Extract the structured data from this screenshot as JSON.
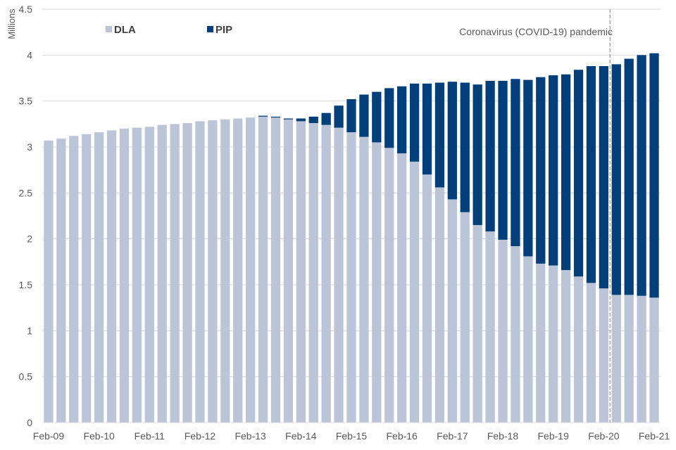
{
  "chart_data": {
    "type": "bar",
    "stacked": true,
    "title": "",
    "xlabel": "",
    "ylabel": "Millions",
    "ylim": [
      0,
      4.5
    ],
    "yticks": [
      0,
      0.5,
      1,
      1.5,
      2,
      2.5,
      3,
      3.5,
      4,
      4.5
    ],
    "ytick_labels": [
      "0",
      "0.5",
      "1",
      "1.5",
      "2",
      "2.5",
      "3",
      "3.5",
      "4",
      "4.5"
    ],
    "grid": true,
    "legend_position": "top-left",
    "x_tick_labels": [
      "Feb-09",
      "Feb-10",
      "Feb-11",
      "Feb-12",
      "Feb-13",
      "Feb-14",
      "Feb-15",
      "Feb-16",
      "Feb-17",
      "Feb-18",
      "Feb-19",
      "Feb-20",
      "Feb-21"
    ],
    "x_tick_every": 4,
    "categories": [
      "Feb-09",
      "May-09",
      "Aug-09",
      "Nov-09",
      "Feb-10",
      "May-10",
      "Aug-10",
      "Nov-10",
      "Feb-11",
      "May-11",
      "Aug-11",
      "Nov-11",
      "Feb-12",
      "May-12",
      "Aug-12",
      "Nov-12",
      "Feb-13",
      "May-13",
      "Aug-13",
      "Nov-13",
      "Feb-14",
      "May-14",
      "Aug-14",
      "Nov-14",
      "Feb-15",
      "May-15",
      "Aug-15",
      "Nov-15",
      "Feb-16",
      "May-16",
      "Aug-16",
      "Nov-16",
      "Feb-17",
      "May-17",
      "Aug-17",
      "Nov-17",
      "Feb-18",
      "May-18",
      "Aug-18",
      "Nov-18",
      "Feb-19",
      "May-19",
      "Aug-19",
      "Nov-19",
      "Feb-20",
      "May-20",
      "Aug-20",
      "Nov-20",
      "Feb-21"
    ],
    "series": [
      {
        "name": "DLA",
        "color": "#bcc5d7",
        "values": [
          3.07,
          3.09,
          3.12,
          3.14,
          3.16,
          3.18,
          3.2,
          3.21,
          3.22,
          3.24,
          3.25,
          3.26,
          3.28,
          3.29,
          3.3,
          3.31,
          3.32,
          3.33,
          3.32,
          3.3,
          3.28,
          3.26,
          3.24,
          3.21,
          3.16,
          3.11,
          3.05,
          2.99,
          2.93,
          2.84,
          2.7,
          2.56,
          2.43,
          2.29,
          2.15,
          2.08,
          1.99,
          1.92,
          1.81,
          1.73,
          1.71,
          1.66,
          1.59,
          1.52,
          1.46,
          1.39,
          1.39,
          1.38,
          1.36
        ]
      },
      {
        "name": "PIP",
        "color": "#003f7a",
        "values": [
          0,
          0,
          0,
          0,
          0,
          0,
          0,
          0,
          0,
          0,
          0,
          0,
          0,
          0,
          0,
          0,
          0,
          0.01,
          0.01,
          0.01,
          0.03,
          0.07,
          0.13,
          0.24,
          0.36,
          0.46,
          0.55,
          0.65,
          0.73,
          0.85,
          0.99,
          1.14,
          1.28,
          1.41,
          1.53,
          1.64,
          1.73,
          1.82,
          1.92,
          2.03,
          2.07,
          2.13,
          2.25,
          2.36,
          2.42,
          2.51,
          2.57,
          2.62,
          2.66
        ]
      }
    ],
    "annotations": [
      {
        "text": "Coronavirus (COVID-19) pandemic",
        "type": "vertical-dashed-line",
        "x_between": [
          "Feb-20",
          "May-20"
        ]
      }
    ]
  },
  "legend": {
    "dla_label": "DLA",
    "pip_label": "PIP"
  },
  "annotation_text": "Coronavirus (COVID-19) pandemic",
  "axis": {
    "ylabel": "Millions"
  }
}
